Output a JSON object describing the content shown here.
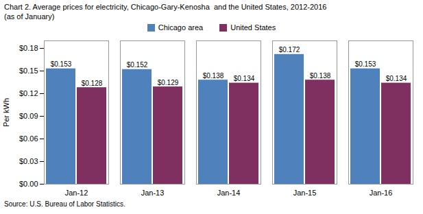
{
  "chart_data": {
    "type": "bar",
    "title": "Chart 2. Average prices for electricity, Chicago-Gary-Kenosha  and the United States, 2012-2016\n(as of January)",
    "ylabel": "Per kWh",
    "source": "Source: U.S. Bureau of Labor Statistics.",
    "categories": [
      "Jan-12",
      "Jan-13",
      "Jan-14",
      "Jan-15",
      "Jan-16"
    ],
    "series": [
      {
        "name": "Chicago area",
        "color": "#4F81BD",
        "values": [
          0.153,
          0.152,
          0.138,
          0.172,
          0.153
        ],
        "value_labels": [
          "$0.153",
          "$0.152",
          "$0.138",
          "$0.172",
          "$0.153"
        ]
      },
      {
        "name": "United States",
        "color": "#7F3060",
        "values": [
          0.128,
          0.129,
          0.134,
          0.138,
          0.134
        ],
        "value_labels": [
          "$0.128",
          "$0.129",
          "$0.134",
          "$0.138",
          "$0.134"
        ]
      }
    ],
    "ylim": [
      0,
      0.19
    ],
    "yticks": [
      {
        "value": 0.0,
        "label": "$0.00"
      },
      {
        "value": 0.03,
        "label": "$0.03"
      },
      {
        "value": 0.06,
        "label": "$0.06"
      },
      {
        "value": 0.09,
        "label": "$0.09"
      },
      {
        "value": 0.12,
        "label": "$0.12"
      },
      {
        "value": 0.15,
        "label": "$0.15"
      },
      {
        "value": 0.18,
        "label": "$0.18"
      }
    ],
    "data_labels": true,
    "legend": "top",
    "grid": false
  }
}
